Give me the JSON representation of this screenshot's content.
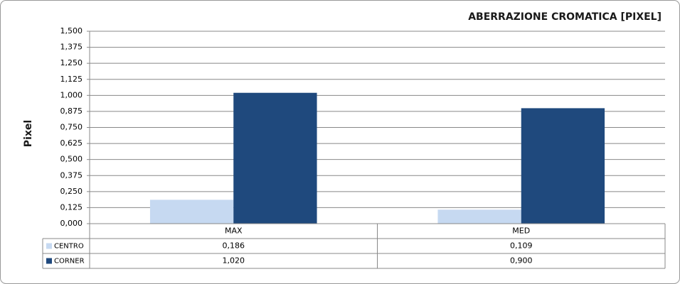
{
  "chart_data": {
    "type": "bar",
    "title": "ABERRAZIONE CROMATICA [PIXEL]",
    "y_label": "Pixel",
    "categories": [
      "MAX",
      "MED"
    ],
    "series": [
      {
        "name": "CENTRO",
        "color": "#c6d9f1",
        "values": [
          0.186,
          0.109
        ],
        "value_labels": [
          "0,186",
          "0,109"
        ]
      },
      {
        "name": "CORNER",
        "color": "#1f497d",
        "values": [
          1.02,
          0.9
        ],
        "value_labels": [
          "1,020",
          "0,900"
        ]
      }
    ],
    "ylim": [
      0,
      1.5
    ],
    "yticks": [
      {
        "value": 0,
        "label": "0,000"
      },
      {
        "value": 0.125,
        "label": "0,125"
      },
      {
        "value": 0.25,
        "label": "0,250"
      },
      {
        "value": 0.375,
        "label": "0,375"
      },
      {
        "value": 0.5,
        "label": "0,500"
      },
      {
        "value": 0.625,
        "label": "0,625"
      },
      {
        "value": 0.75,
        "label": "0,750"
      },
      {
        "value": 0.875,
        "label": "0,875"
      },
      {
        "value": 1,
        "label": "1,000"
      },
      {
        "value": 1.125,
        "label": "1,125"
      },
      {
        "value": 1.25,
        "label": "1,250"
      },
      {
        "value": 1.375,
        "label": "1,375"
      },
      {
        "value": 1.5,
        "label": "1,500"
      }
    ],
    "grid": true
  }
}
